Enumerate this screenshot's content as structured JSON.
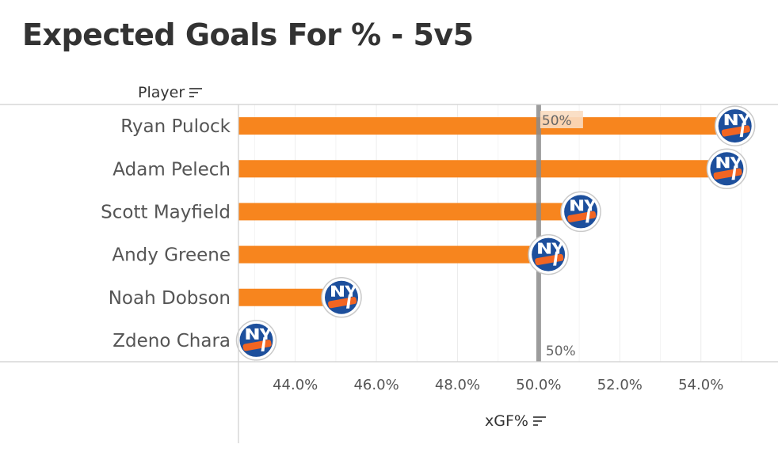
{
  "title": "Expected Goals For % - 5v5",
  "header": {
    "player_label": "Player"
  },
  "icons": {
    "sort": "sort-descending-icon",
    "logo": "new-york-islanders-logo"
  },
  "colors": {
    "bar": "#f7851e",
    "reference_line": "#8c8c8c",
    "logo_blue": "#1d4f9c",
    "logo_orange": "#f26522"
  },
  "chart_data": {
    "type": "bar",
    "orientation": "horizontal",
    "title": "Expected Goals For % - 5v5",
    "xlabel": "xGF%",
    "ylabel": "Player",
    "categories": [
      "Ryan Pulock",
      "Adam Pelech",
      "Scott Mayfield",
      "Andy Greene",
      "Noah Dobson",
      "Zdeno Chara"
    ],
    "values": [
      54.8,
      54.6,
      51.0,
      50.2,
      45.1,
      43.0
    ],
    "xlim": [
      42.6,
      55.9
    ],
    "xticks": [
      44.0,
      46.0,
      48.0,
      50.0,
      52.0,
      54.0
    ],
    "xtick_labels": [
      "44.0%",
      "46.0%",
      "48.0%",
      "50.0%",
      "52.0%",
      "54.0%"
    ],
    "reference_line": {
      "value": 50.0,
      "label": "50%"
    },
    "grid": "vertical"
  }
}
